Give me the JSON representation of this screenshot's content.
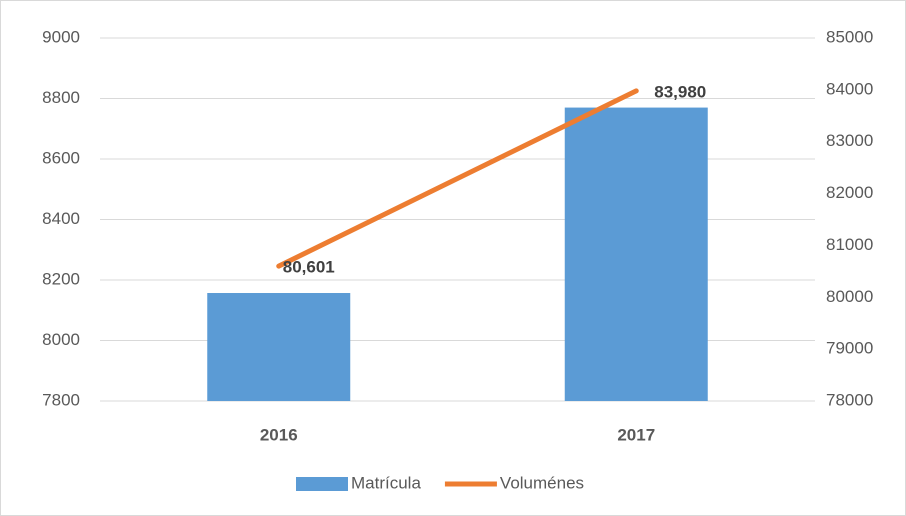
{
  "chart_data": {
    "type": "bar",
    "categories": [
      "2016",
      "2017"
    ],
    "series": [
      {
        "name": "Matrícula",
        "type": "bar",
        "color": "#5b9bd5",
        "values": [
          8157,
          8770
        ]
      },
      {
        "name": "Voluménes",
        "type": "line",
        "axis": "y2",
        "color": "#ed7d31",
        "values": [
          80601,
          83980
        ],
        "value_labels": [
          "80,601",
          "83,980"
        ]
      }
    ],
    "ylim": [
      7800,
      9000
    ],
    "yticks": [
      7800,
      8000,
      8200,
      8400,
      8600,
      8800,
      9000
    ],
    "y2lim": [
      78000,
      85000
    ],
    "y2ticks": [
      78000,
      79000,
      80000,
      81000,
      82000,
      83000,
      84000,
      85000
    ],
    "grid": true,
    "legend": "bottom"
  }
}
